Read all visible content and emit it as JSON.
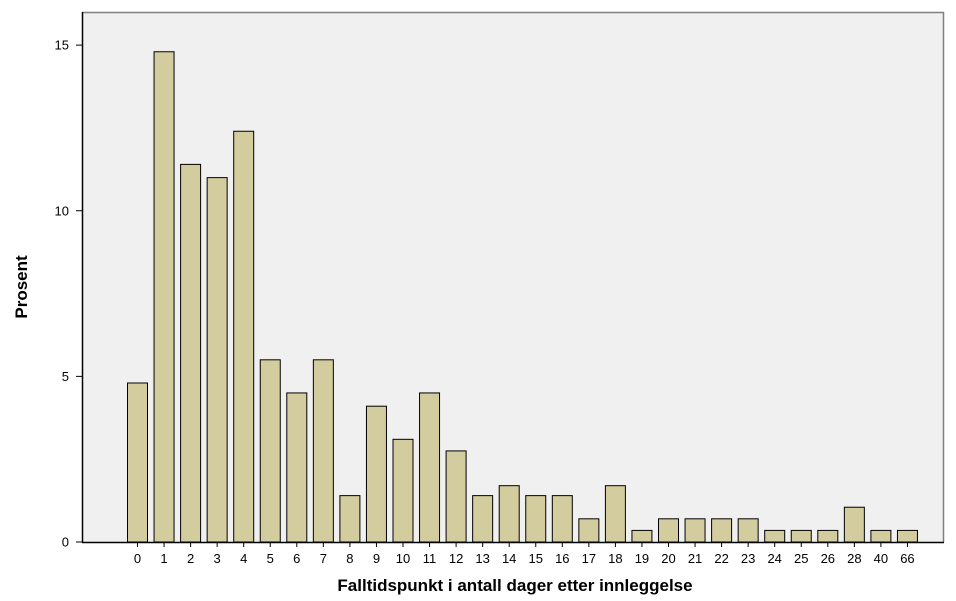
{
  "chart_data": {
    "type": "bar",
    "title": "",
    "xlabel": "Falltidspunkt i antall dager etter innleggelse",
    "ylabel": "Prosent",
    "ylim": [
      0,
      16
    ],
    "yticks": [
      0,
      5,
      10,
      15
    ],
    "grid": false,
    "categories": [
      "0",
      "1",
      "2",
      "3",
      "4",
      "5",
      "6",
      "7",
      "8",
      "9",
      "10",
      "11",
      "12",
      "13",
      "14",
      "15",
      "16",
      "17",
      "18",
      "19",
      "20",
      "21",
      "22",
      "23",
      "24",
      "25",
      "26",
      "28",
      "40",
      "66"
    ],
    "values": [
      4.8,
      14.8,
      11.4,
      11.0,
      12.4,
      5.5,
      4.5,
      5.5,
      1.4,
      4.1,
      3.1,
      4.5,
      2.75,
      1.4,
      1.7,
      1.4,
      1.4,
      0.7,
      1.7,
      0.35,
      0.7,
      0.7,
      0.7,
      0.7,
      0.35,
      0.35,
      0.35,
      1.05,
      0.35,
      0.35
    ],
    "colors": {
      "bar_fill": "#d3cc9e",
      "bar_stroke": "#000000",
      "plot_background": "#f0f0f0",
      "axis": "#000000",
      "frame": "#808080"
    }
  }
}
